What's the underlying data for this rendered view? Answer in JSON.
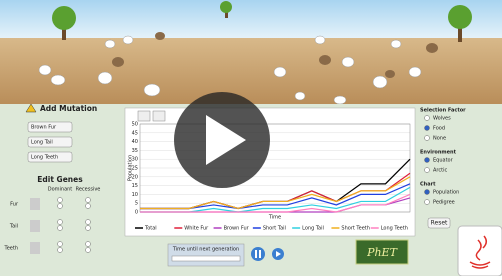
{
  "scene": {
    "logo": "PhET"
  },
  "mutation_panel": {
    "title": "Add Mutation",
    "buttons": [
      "Brown Fur",
      "Long Tail",
      "Long Teeth"
    ]
  },
  "genes_panel": {
    "title": "Edit Genes",
    "columns": [
      "Dominant",
      "Recessive"
    ],
    "rows": [
      "Fur",
      "Tail",
      "Teeth"
    ]
  },
  "chart_data": {
    "type": "line",
    "y_label": "Population",
    "x_label": "Time",
    "ylim": [
      0,
      50
    ],
    "yticks": [
      0,
      5,
      10,
      15,
      20,
      25,
      30,
      35,
      40,
      45,
      50
    ],
    "grid": true,
    "series": [
      {
        "name": "Total",
        "color": "#000000",
        "values": [
          2,
          2,
          2,
          6,
          2,
          6,
          6,
          12,
          6,
          16,
          16,
          30
        ]
      },
      {
        "name": "White Fur",
        "color": "#e0203a",
        "values": [
          2,
          2,
          2,
          6,
          2,
          6,
          6,
          12,
          6,
          12,
          12,
          22
        ]
      },
      {
        "name": "Brown Fur",
        "color": "#b040c0",
        "values": [
          0,
          0,
          0,
          0,
          0,
          0,
          0,
          0,
          0,
          4,
          4,
          8
        ]
      },
      {
        "name": "Short Tail",
        "color": "#2040e0",
        "values": [
          2,
          2,
          2,
          4,
          2,
          4,
          4,
          8,
          4,
          10,
          10,
          16
        ]
      },
      {
        "name": "Long Tail",
        "color": "#30d0e0",
        "values": [
          0,
          0,
          0,
          2,
          0,
          2,
          2,
          4,
          2,
          6,
          6,
          14
        ]
      },
      {
        "name": "Short Teeth",
        "color": "#f0b020",
        "values": [
          2,
          2,
          2,
          6,
          2,
          6,
          6,
          10,
          6,
          12,
          12,
          20
        ]
      },
      {
        "name": "Long Teeth",
        "color": "#ff80c0",
        "values": [
          0,
          0,
          0,
          0,
          0,
          0,
          0,
          2,
          0,
          4,
          4,
          10
        ]
      }
    ]
  },
  "right_panel": {
    "selection_factor": {
      "title": "Selection Factor",
      "options": [
        "Wolves",
        "Food",
        "None"
      ],
      "selected": 1
    },
    "environment": {
      "title": "Environment",
      "options": [
        "Equator",
        "Arctic"
      ],
      "selected": 0
    },
    "chart": {
      "title": "Chart",
      "options": [
        "Population",
        "Pedigree"
      ],
      "selected": 0
    },
    "reset": "Reset"
  },
  "timer": {
    "label": "Time until next generation"
  }
}
